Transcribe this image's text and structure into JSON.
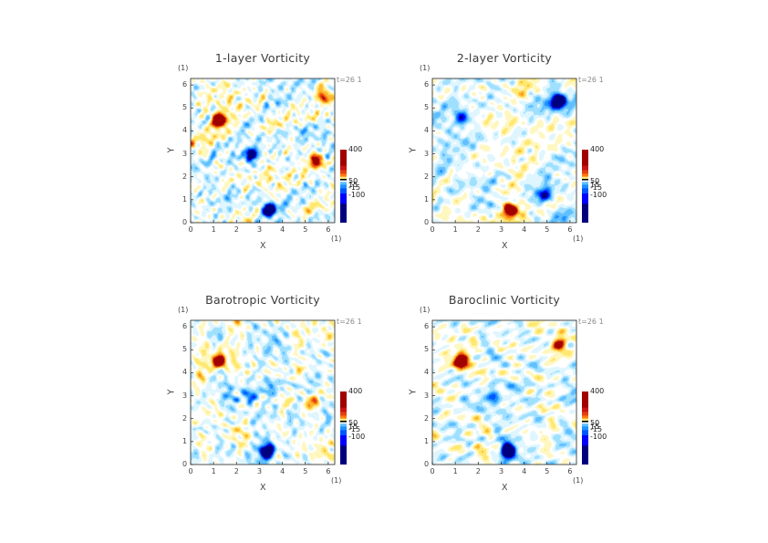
{
  "chart_data": [
    {
      "type": "heatmap",
      "title": "1-layer Vorticity",
      "xlabel": "X",
      "ylabel": "Y",
      "x_unit": "(1)",
      "y_unit": "(1)",
      "time_label": "t=26 1",
      "xlim": [
        0,
        6.283
      ],
      "ylim": [
        0,
        6.283
      ],
      "xticks": [
        "0",
        "1",
        "2",
        "3",
        "4",
        "5",
        "6"
      ],
      "yticks": [
        "0",
        "1",
        "2",
        "3",
        "4",
        "5",
        "6"
      ],
      "colorbar_ticks": [
        "400",
        "50",
        "15",
        "-15",
        "-100"
      ],
      "colorbar_levels": [
        400,
        50,
        15,
        -15,
        -100
      ],
      "vortices": [
        {
          "x": 1.2,
          "y": 4.5,
          "sign": 1,
          "strength": 1.0
        },
        {
          "x": 3.4,
          "y": 0.6,
          "sign": -1,
          "strength": 1.0
        },
        {
          "x": 2.6,
          "y": 3.0,
          "sign": -1,
          "strength": 0.8
        },
        {
          "x": 5.5,
          "y": 2.7,
          "sign": 1,
          "strength": 0.8
        },
        {
          "x": 5.8,
          "y": 5.5,
          "sign": 1,
          "strength": 0.7
        }
      ]
    },
    {
      "type": "heatmap",
      "title": "2-layer Vorticity",
      "xlabel": "X",
      "ylabel": "Y",
      "x_unit": "(1)",
      "y_unit": "(1)",
      "time_label": "t=26 1",
      "xlim": [
        0,
        6.283
      ],
      "ylim": [
        0,
        6.283
      ],
      "xticks": [
        "0",
        "1",
        "2",
        "3",
        "4",
        "5",
        "6"
      ],
      "yticks": [
        "0",
        "1",
        "2",
        "3",
        "4",
        "5",
        "6"
      ],
      "colorbar_ticks": [
        "400",
        "50",
        "15",
        "-15",
        "-100"
      ],
      "colorbar_levels": [
        400,
        50,
        15,
        -15,
        -100
      ],
      "vortices": [
        {
          "x": 1.3,
          "y": 4.6,
          "sign": -1,
          "strength": 0.5
        },
        {
          "x": 3.4,
          "y": 0.6,
          "sign": 1,
          "strength": 0.9
        },
        {
          "x": 5.5,
          "y": 5.3,
          "sign": -1,
          "strength": 1.0
        },
        {
          "x": 4.9,
          "y": 1.2,
          "sign": -1,
          "strength": 0.5
        }
      ]
    },
    {
      "type": "heatmap",
      "title": "Barotropic Vorticity",
      "xlabel": "X",
      "ylabel": "Y",
      "x_unit": "(1)",
      "y_unit": "(1)",
      "time_label": "t=26 1",
      "xlim": [
        0,
        6.283
      ],
      "ylim": [
        0,
        6.283
      ],
      "xticks": [
        "0",
        "1",
        "2",
        "3",
        "4",
        "5",
        "6"
      ],
      "yticks": [
        "0",
        "1",
        "2",
        "3",
        "4",
        "5",
        "6"
      ],
      "colorbar_ticks": [
        "400",
        "50",
        "15",
        "-15",
        "-100"
      ],
      "colorbar_levels": [
        400,
        50,
        15,
        -15,
        -100
      ],
      "vortices": [
        {
          "x": 1.2,
          "y": 4.5,
          "sign": 1,
          "strength": 0.9
        },
        {
          "x": 3.3,
          "y": 0.6,
          "sign": -1,
          "strength": 0.9
        },
        {
          "x": 2.6,
          "y": 3.0,
          "sign": -1,
          "strength": 0.5
        },
        {
          "x": 5.3,
          "y": 2.7,
          "sign": 1,
          "strength": 0.5
        }
      ]
    },
    {
      "type": "heatmap",
      "title": "Baroclinic Vorticity",
      "xlabel": "X",
      "ylabel": "Y",
      "x_unit": "(1)",
      "y_unit": "(1)",
      "time_label": "t=26 1",
      "xlim": [
        0,
        6.283
      ],
      "ylim": [
        0,
        6.283
      ],
      "xticks": [
        "0",
        "1",
        "2",
        "3",
        "4",
        "5",
        "6"
      ],
      "yticks": [
        "0",
        "1",
        "2",
        "3",
        "4",
        "5",
        "6"
      ],
      "colorbar_ticks": [
        "400",
        "50",
        "15",
        "-15",
        "-100"
      ],
      "colorbar_levels": [
        400,
        50,
        15,
        -15,
        -100
      ],
      "vortices": [
        {
          "x": 1.2,
          "y": 4.5,
          "sign": 1,
          "strength": 1.0
        },
        {
          "x": 3.3,
          "y": 0.6,
          "sign": -1,
          "strength": 1.0
        },
        {
          "x": 5.5,
          "y": 5.3,
          "sign": 1,
          "strength": 0.7
        },
        {
          "x": 2.6,
          "y": 3.0,
          "sign": -1,
          "strength": 0.5
        }
      ]
    }
  ],
  "colormap": [
    "#00007f",
    "#0000ff",
    "#0055ff",
    "#1e90ff",
    "#5fbfff",
    "#9fe0ff",
    "#dff6ff",
    "#ffffff",
    "#fff7c0",
    "#ffe870",
    "#ffb830",
    "#ff7a10",
    "#e04010",
    "#a00000"
  ]
}
